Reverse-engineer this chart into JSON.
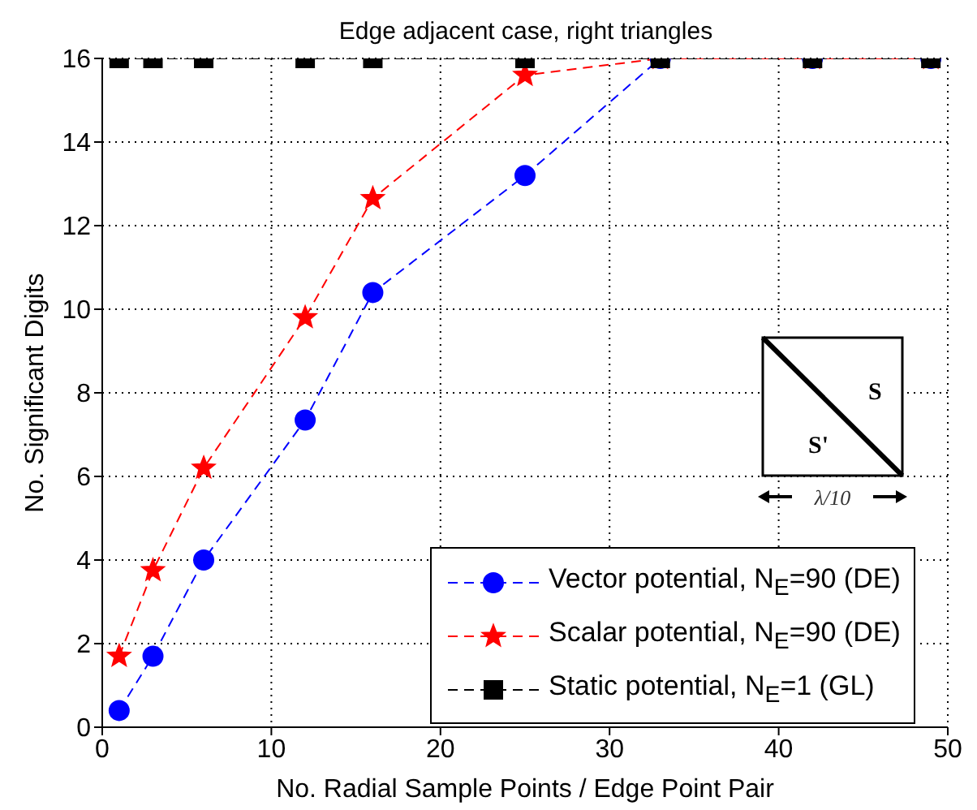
{
  "chart_data": {
    "type": "line",
    "title": "Edge adjacent case, right triangles",
    "xlabel": "No. Radial Sample Points / Edge Point Pair",
    "ylabel": "No. Significant Digits",
    "x": [
      1,
      3,
      6,
      12,
      16,
      25,
      33,
      42,
      49
    ],
    "series": [
      {
        "name": "Vector potential, N$_{E}$=90 (DE)",
        "color": "#0000ff",
        "marker": "circle",
        "line_style": "dashed",
        "values": [
          0.4,
          1.7,
          4.0,
          7.35,
          10.4,
          13.2,
          16,
          16,
          16
        ]
      },
      {
        "name": "Scalar potential, N$_{E}$=90 (DE)",
        "color": "#ff0000",
        "marker": "star",
        "line_style": "dashed",
        "values": [
          1.7,
          3.75,
          6.2,
          9.8,
          12.65,
          15.6,
          16,
          16,
          16
        ]
      },
      {
        "name": "Static potential, N$_{E}$=1 (GL)",
        "color": "#000000",
        "marker": "square",
        "line_style": "dashed",
        "values": [
          16,
          16,
          16,
          16,
          16,
          16,
          16,
          16,
          16
        ]
      }
    ],
    "xlim": [
      0,
      50
    ],
    "xticks": [
      0,
      10,
      20,
      30,
      40,
      50
    ],
    "ylim": [
      0,
      16
    ],
    "yticks": [
      0,
      2,
      4,
      6,
      8,
      10,
      12,
      14,
      16
    ],
    "grid": true,
    "legend": "bottom right",
    "annotations": [
      "S",
      "S'",
      "λ/10"
    ]
  }
}
